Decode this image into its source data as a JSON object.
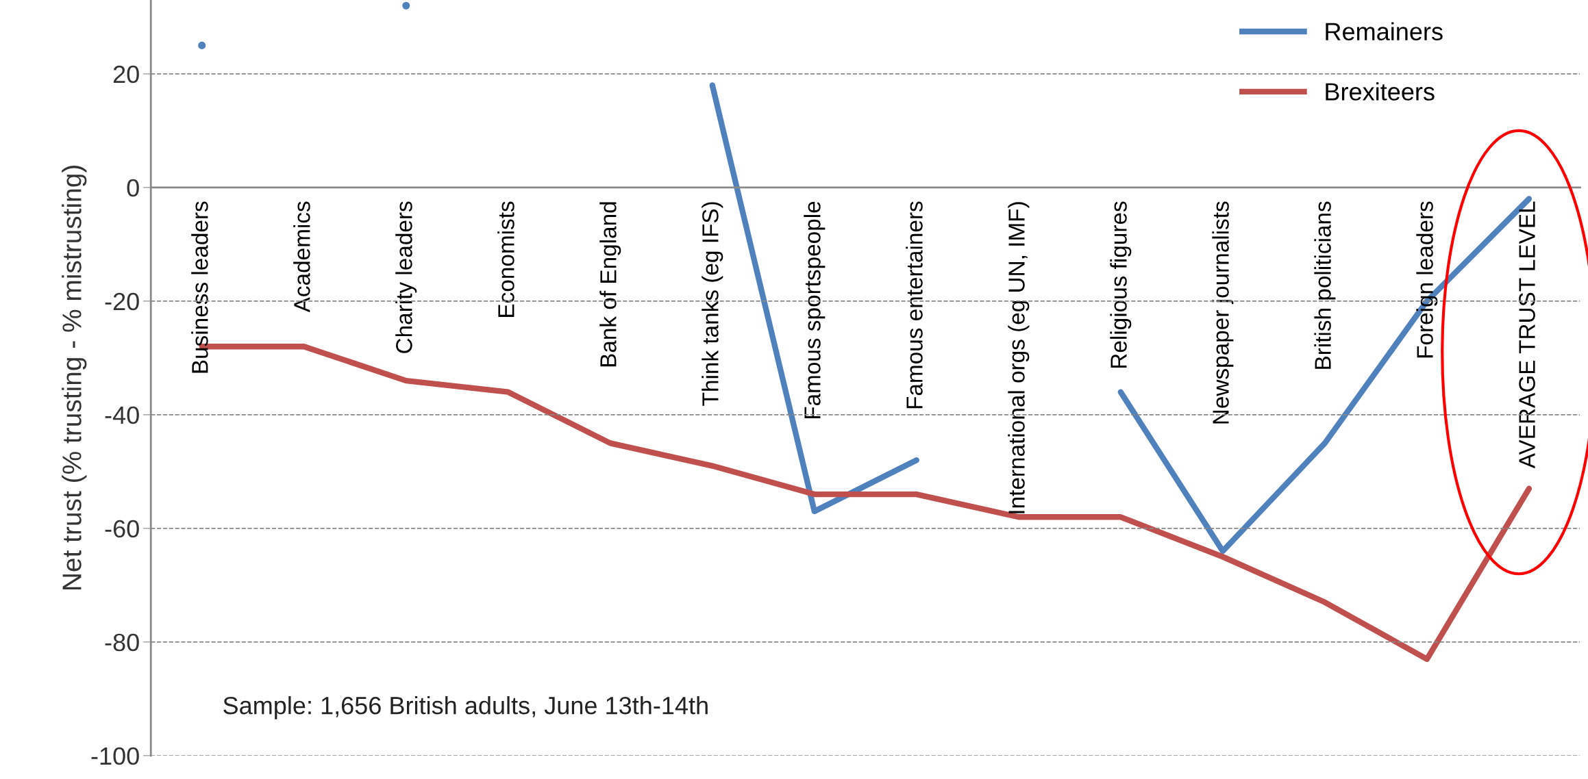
{
  "chart_data": {
    "type": "line",
    "ylabel": "Net trust (% trusting - % mistrusting)",
    "categories": [
      "Business leaders",
      "Academics",
      "Charity leaders",
      "Economists",
      "Bank of England",
      "Think tanks (eg IFS)",
      "Famous sportspeople",
      "Famous entertainers",
      "International orgs (eg UN, IMF)",
      "Religious figures",
      "Newspaper journalists",
      "British politicians",
      "Foreign leaders",
      "AVERAGE TRUST LEVEL"
    ],
    "series": [
      {
        "name": "Remainers",
        "color": "#4f81bd",
        "values": [
          25,
          null,
          32,
          null,
          null,
          18,
          -57,
          -48,
          null,
          -36,
          -64,
          -45,
          -20,
          -2
        ]
      },
      {
        "name": "Brexiteers",
        "color": "#c0504d",
        "values": [
          -28,
          -28,
          -34,
          -36,
          -45,
          -49,
          -54,
          -54,
          -58,
          -58,
          -65,
          -73,
          -83,
          -53
        ]
      }
    ],
    "ylim": [
      -100,
      33
    ],
    "yticks": [
      -100,
      -80,
      -60,
      -40,
      -20,
      0,
      20
    ],
    "grid": "y",
    "legend": "top right",
    "marker": "none",
    "line_style": "solid",
    "annotations": [
      {
        "text": "Sample: 1,656 British adults, June 13th-14th"
      }
    ]
  }
}
